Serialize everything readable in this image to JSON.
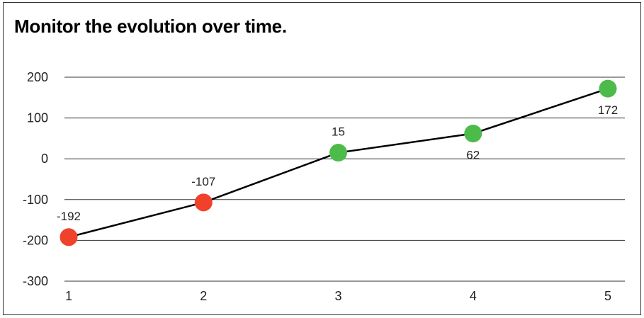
{
  "chart_data": {
    "type": "line",
    "title": "Monitor the evolution over time.",
    "x": [
      1,
      2,
      3,
      4,
      5
    ],
    "series": [
      {
        "values": [
          -192,
          -107,
          15,
          62,
          172
        ]
      }
    ],
    "point_colors": [
      "#f0412b",
      "#f0412b",
      "#4cbb4a",
      "#4cbb4a",
      "#4cbb4a"
    ],
    "label_positions": [
      "above",
      "above",
      "above",
      "below",
      "below"
    ],
    "line_color": "#000000",
    "xlabel": "",
    "ylabel": "",
    "xlim": [
      1,
      5
    ],
    "ylim": [
      -300,
      200
    ],
    "yticks": [
      200,
      100,
      0,
      -100,
      -200,
      -300
    ],
    "xticks": [
      1,
      2,
      3,
      4,
      5
    ],
    "grid": "horizontal"
  }
}
